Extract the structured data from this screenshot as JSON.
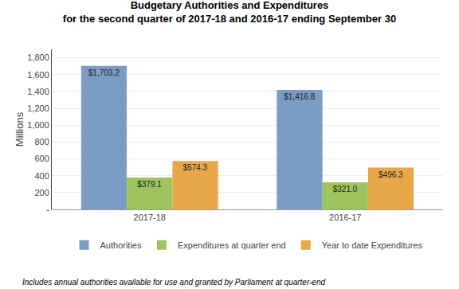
{
  "chart_data": {
    "type": "bar",
    "title": "Budgetary Authorities and Expenditures",
    "subtitle": "for the second quarter of 2017-18 and 2016-17 ending September 30",
    "ylabel": "Millions",
    "categories": [
      "2017-18",
      "2016-17"
    ],
    "series": [
      {
        "name": "Authorities",
        "color": "#7b9cc4",
        "values": [
          1703.2,
          1416.8
        ],
        "value_labels": [
          "$1,703.2",
          "$1,416.8"
        ]
      },
      {
        "name": "Expenditures at quarter end",
        "color": "#9dc45e",
        "values": [
          379.1,
          321.0
        ],
        "value_labels": [
          "$379.1",
          "$321.0"
        ]
      },
      {
        "name": "Year to date Expenditures",
        "color": "#e8a84a",
        "values": [
          574.3,
          496.3
        ],
        "value_labels": [
          "$574.3",
          "$496.3"
        ]
      }
    ],
    "ylim": [
      0,
      1900
    ],
    "yticks": [
      {
        "value": 0,
        "label": "-"
      },
      200,
      400,
      600,
      800,
      {
        "value": 1000,
        "label": "1,000"
      },
      {
        "value": 1200,
        "label": "1,200"
      },
      {
        "value": 1400,
        "label": "1,400"
      },
      {
        "value": 1600,
        "label": "1,600"
      },
      {
        "value": 1800,
        "label": "1,800"
      }
    ],
    "grid": true,
    "legend": "bottom",
    "data_labels": true,
    "annotations": [
      "Includes annual authorities available for use and granted by Parliament at quarter-end"
    ]
  }
}
